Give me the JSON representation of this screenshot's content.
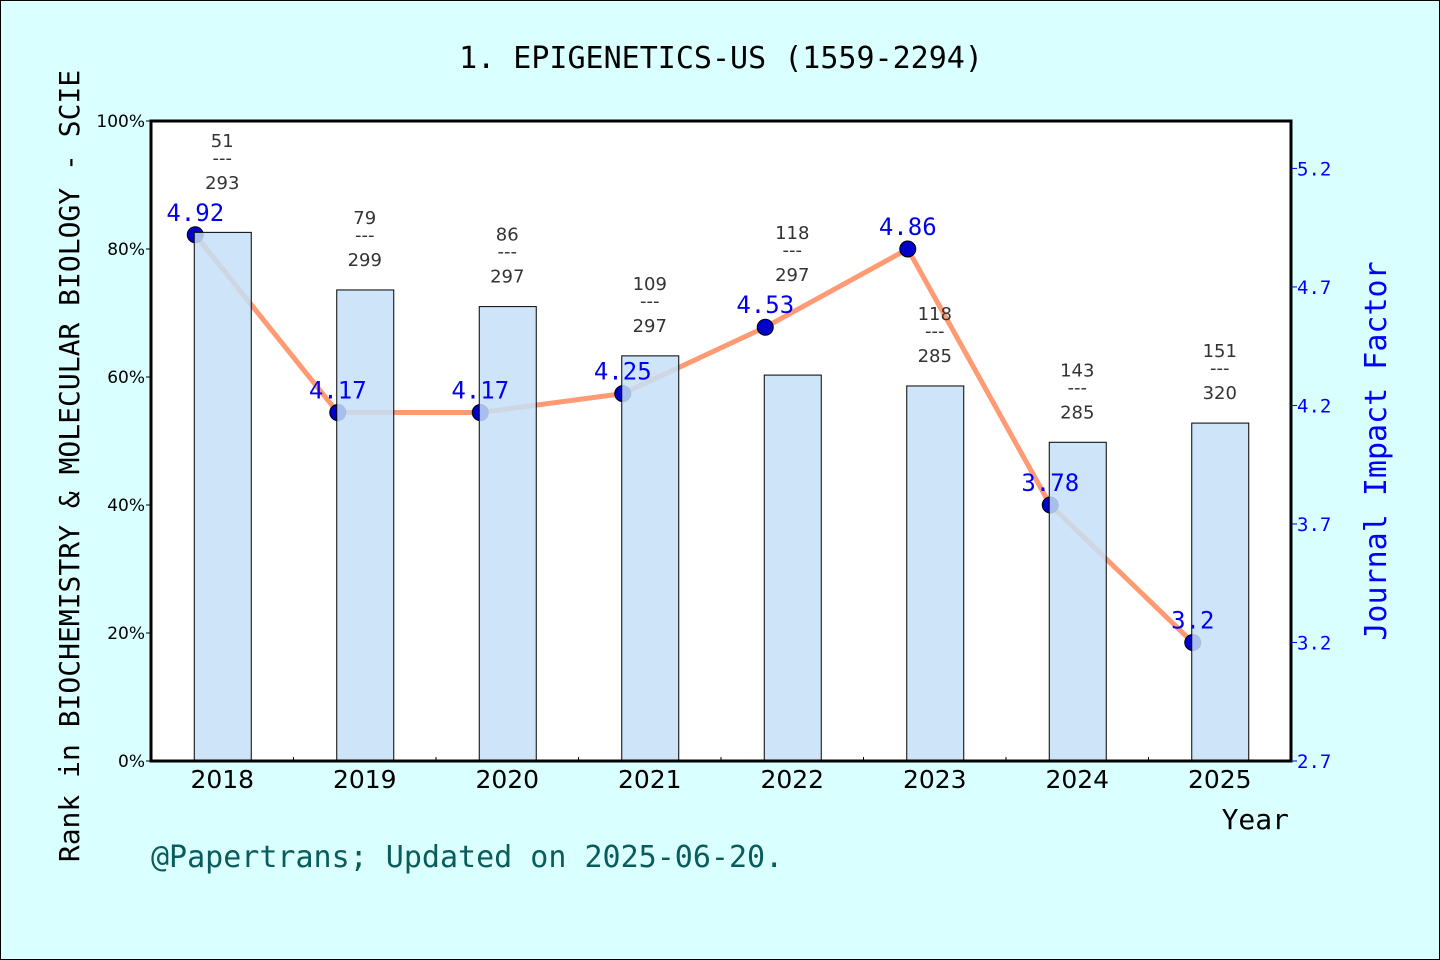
{
  "chart_data": {
    "type": "bar+line",
    "title": "1. EPIGENETICS-US (1559-2294)",
    "xlabel": "Year",
    "ylabel_left": "Rank in BIOCHEMISTRY & MOLECULAR BIOLOGY - SCIE",
    "ylabel_right": "Journal Impact Factor",
    "categories": [
      "2018",
      "2019",
      "2020",
      "2021",
      "2022",
      "2023",
      "2024",
      "2025"
    ],
    "left_ylim": [
      0,
      100
    ],
    "left_ticks": [
      "0%",
      "20%",
      "40%",
      "60%",
      "80%",
      "100%"
    ],
    "right_ylim": [
      2.7,
      5.4
    ],
    "right_ticks": [
      "2.7",
      "3.2",
      "3.7",
      "4.2",
      "4.7",
      "5.2"
    ],
    "rank": [
      51,
      79,
      86,
      109,
      118,
      118,
      143,
      151
    ],
    "total": [
      293,
      299,
      297,
      297,
      297,
      285,
      285,
      320
    ],
    "rank_labels": [
      [
        "51",
        "---",
        "293"
      ],
      [
        "79",
        "---",
        "299"
      ],
      [
        "86",
        "---",
        "297"
      ],
      [
        "109",
        "---",
        "297"
      ],
      [
        "118",
        "---",
        "297"
      ],
      [
        "118",
        "---",
        "285"
      ],
      [
        "143",
        "---",
        "285"
      ],
      [
        "151",
        "---",
        "320"
      ]
    ],
    "bar_percent": [
      82.6,
      73.6,
      71.0,
      63.3,
      60.3,
      58.6,
      49.8,
      52.8
    ],
    "impact_factor": [
      4.92,
      4.17,
      4.17,
      4.25,
      4.53,
      4.86,
      3.78,
      3.2
    ],
    "if_labels": [
      "4.92",
      "4.17",
      "4.17",
      "4.25",
      "4.53",
      "4.86",
      "3.78",
      "3.2"
    ],
    "grid": false,
    "colors": {
      "background": "#d9ffff",
      "bar": "#c5dff7",
      "line": "#ff9a73",
      "point": "#0000cc",
      "if_label": "#0000ee",
      "right_axis": "#0000ff",
      "footer": "#0a5c5c"
    }
  },
  "footer": "@Papertrans; Updated on 2025-06-20."
}
